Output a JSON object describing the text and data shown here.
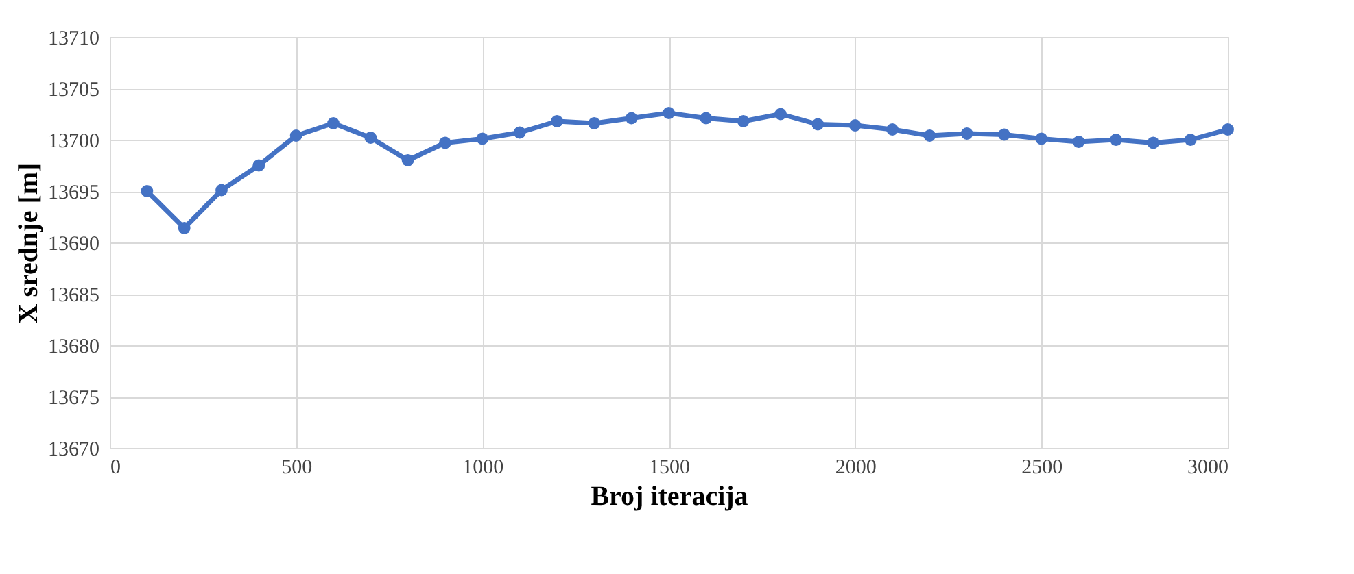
{
  "chart_data": {
    "type": "line",
    "xlabel": "Broj iteracija",
    "ylabel": "X srednje  [m]",
    "x": [
      100,
      200,
      300,
      400,
      500,
      600,
      700,
      800,
      900,
      1000,
      1100,
      1200,
      1300,
      1400,
      1500,
      1600,
      1700,
      1800,
      1900,
      2000,
      2100,
      2200,
      2300,
      2400,
      2500,
      2600,
      2700,
      2800,
      2900,
      3000
    ],
    "series": [
      {
        "color": "#4472c4",
        "values": [
          13695,
          13691.4,
          13695.1,
          13697.5,
          13700.4,
          13701.6,
          13700.2,
          13698,
          13699.7,
          13700.1,
          13700.7,
          13701.8,
          13701.6,
          13702.1,
          13702.6,
          13702.1,
          13701.8,
          13702.5,
          13701.5,
          13701.4,
          13701,
          13700.4,
          13700.6,
          13700.5,
          13700.1,
          13699.8,
          13700,
          13699.7,
          13700,
          13701
        ]
      }
    ],
    "xlim": [
      0,
      3000
    ],
    "xticks": [
      0,
      500,
      1000,
      1500,
      2000,
      2500,
      3000
    ],
    "ylim": [
      13670,
      13710
    ],
    "yticks": [
      13670,
      13675,
      13680,
      13685,
      13690,
      13695,
      13700,
      13705,
      13710
    ],
    "grid": true,
    "marker": "circle",
    "line_style": "solid"
  }
}
